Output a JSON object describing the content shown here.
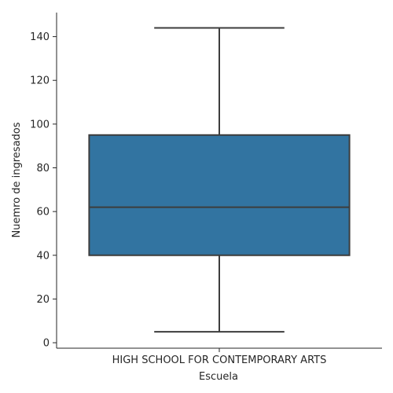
{
  "chart_data": {
    "type": "box",
    "categories": [
      "HIGH SCHOOL FOR CONTEMPORARY ARTS"
    ],
    "boxes": [
      {
        "category": "HIGH SCHOOL FOR CONTEMPORARY ARTS",
        "whisker_low": 5,
        "q1": 40,
        "median": 62,
        "q3": 95,
        "whisker_high": 144
      }
    ],
    "xlabel": "Escuela",
    "ylabel": "Nuemro de ingresados",
    "ylim": [
      -2.5,
      151
    ],
    "yticks": [
      0,
      20,
      40,
      60,
      80,
      100,
      120,
      140
    ],
    "grid": false,
    "colors": {
      "box_fill": "#3274a1",
      "line": "#3d3d3d",
      "axis": "#262626"
    }
  }
}
